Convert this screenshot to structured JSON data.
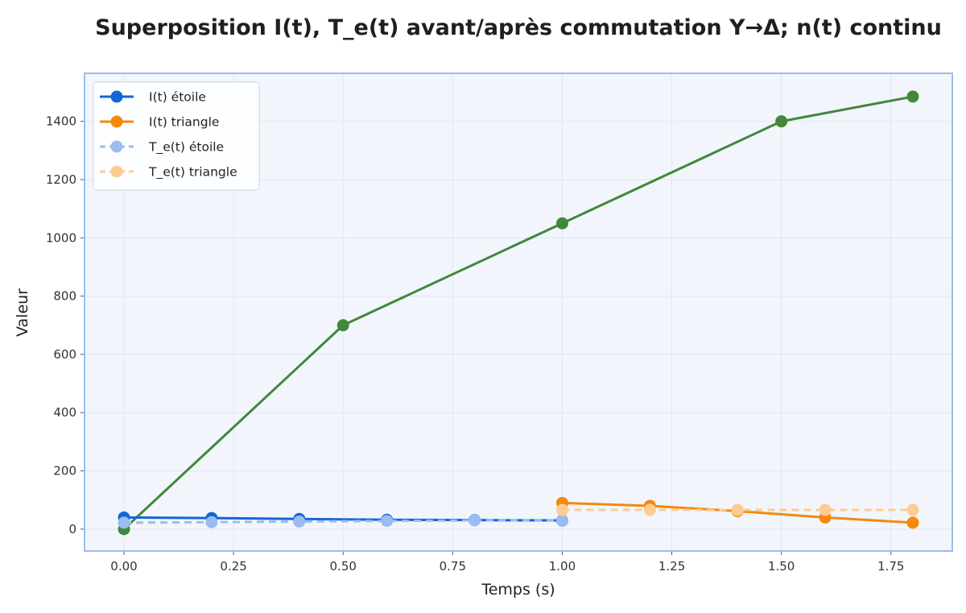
{
  "chart_data": {
    "type": "line",
    "title": "Superposition I(t), T_e(t) avant/après commutation Y→Δ; n(t) continu",
    "xlabel": "Temps (s)",
    "ylabel": "Valeur",
    "xlim": [
      -0.09,
      1.89
    ],
    "ylim": [
      -75,
      1565
    ],
    "x_ticks": [
      0.0,
      0.25,
      0.5,
      0.75,
      1.0,
      1.25,
      1.5,
      1.75
    ],
    "x_tick_labels": [
      "0.00",
      "0.25",
      "0.50",
      "0.75",
      "1.00",
      "1.25",
      "1.50",
      "1.75"
    ],
    "y_ticks": [
      0,
      200,
      400,
      600,
      800,
      1000,
      1200,
      1400
    ],
    "y_tick_labels": [
      "0",
      "200",
      "400",
      "600",
      "800",
      "1000",
      "1200",
      "1400"
    ],
    "grid": true,
    "legend_position": "top-left",
    "series": [
      {
        "name": "I(t) étoile",
        "color": "#1565d8",
        "dashed": false,
        "in_legend": true,
        "x": [
          0.0,
          0.2,
          0.4,
          0.6,
          0.8,
          1.0
        ],
        "y": [
          40,
          38,
          35,
          32,
          31,
          30
        ]
      },
      {
        "name": "I(t) triangle",
        "color": "#f5890c",
        "dashed": false,
        "in_legend": true,
        "x": [
          1.0,
          1.2,
          1.4,
          1.6,
          1.8
        ],
        "y": [
          90,
          80,
          62,
          40,
          22
        ]
      },
      {
        "name": "T_e(t) étoile",
        "color": "#9bbcf0",
        "dashed": true,
        "in_legend": true,
        "x": [
          0.0,
          0.2,
          0.4,
          0.6,
          0.8,
          1.0
        ],
        "y": [
          22,
          24,
          26,
          28,
          30,
          31
        ]
      },
      {
        "name": "T_e(t) triangle",
        "color": "#fccc92",
        "dashed": true,
        "in_legend": true,
        "x": [
          1.0,
          1.2,
          1.4,
          1.6,
          1.8
        ],
        "y": [
          66,
          66,
          66,
          66,
          66
        ]
      },
      {
        "name": "",
        "color": "#43873c",
        "dashed": false,
        "in_legend": false,
        "x": [
          0.0,
          0.5,
          1.0,
          1.5,
          1.8
        ],
        "y": [
          0,
          700,
          1050,
          1400,
          1485
        ]
      }
    ]
  },
  "colors": {
    "plot_background": "#f2f6fc",
    "plot_border": "#9bbcec",
    "grid": "#dfe6f3"
  }
}
